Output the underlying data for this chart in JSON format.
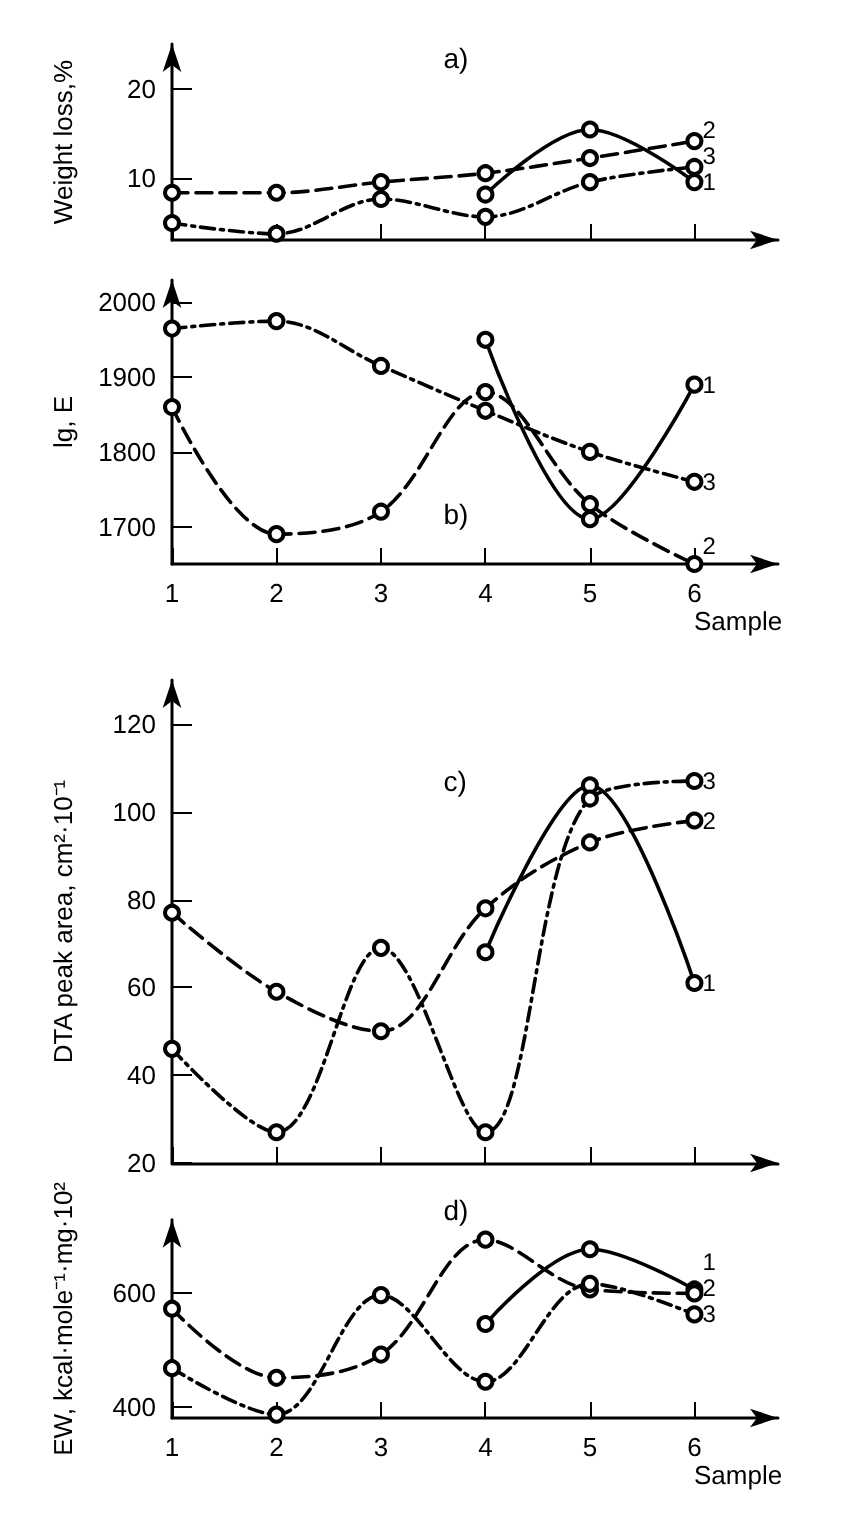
{
  "chart_data": [
    {
      "type": "line",
      "ylabel": "Weight loss,%",
      "annotations": [
        "a)"
      ],
      "x": [
        1,
        2,
        3,
        4,
        5,
        6
      ],
      "xlim": [
        1,
        6.8
      ],
      "xticks": [
        1,
        2,
        3,
        4,
        5,
        6
      ],
      "ylim": [
        3,
        25
      ],
      "yticks": [
        10,
        20
      ],
      "tick_labels": "y",
      "grid": false,
      "legend": false,
      "marker": "circle",
      "series": [
        {
          "name": "1",
          "color": "#000000",
          "line_style": "solid",
          "values": [
            null,
            null,
            null,
            8.1,
            15.4,
            9.5
          ]
        },
        {
          "name": "2",
          "color": "#000000",
          "line_style": "dashed",
          "values": [
            8.3,
            8.3,
            9.5,
            10.5,
            12.2,
            14.1
          ]
        },
        {
          "name": "3",
          "color": "#000000",
          "line_style": "dotted",
          "values": [
            4.9,
            3.7,
            7.6,
            5.6,
            9.5,
            11.2
          ]
        }
      ]
    },
    {
      "type": "line",
      "ylabel": "lg, E",
      "xlabel": "Sample",
      "annotations": [
        "b)"
      ],
      "x": [
        1,
        2,
        3,
        4,
        5,
        6
      ],
      "xlim": [
        1,
        6.8
      ],
      "xticks": [
        1,
        2,
        3,
        4,
        5,
        6
      ],
      "ylim": [
        1650,
        2030
      ],
      "yticks": [
        1700,
        1800,
        1900,
        2000
      ],
      "grid": false,
      "legend": false,
      "marker": "circle",
      "series": [
        {
          "name": "1",
          "color": "#000000",
          "line_style": "solid",
          "values": [
            null,
            null,
            null,
            1950,
            1710,
            1890
          ]
        },
        {
          "name": "2",
          "color": "#000000",
          "line_style": "dashed",
          "values": [
            1860,
            1690,
            1720,
            1880,
            1730,
            1650
          ]
        },
        {
          "name": "3",
          "color": "#000000",
          "line_style": "dotted",
          "values": [
            1965,
            1975,
            1915,
            1855,
            1800,
            1760
          ]
        }
      ]
    },
    {
      "type": "line",
      "ylabel": "DTA peak area, cm²·10⁻¹",
      "annotations": [
        "c)"
      ],
      "x": [
        1,
        2,
        3,
        4,
        5,
        6
      ],
      "xlim": [
        1,
        6.8
      ],
      "xticks": [
        1,
        2,
        3,
        4,
        5,
        6
      ],
      "ylim": [
        20,
        130
      ],
      "yticks": [
        20,
        40,
        60,
        80,
        100,
        120
      ],
      "tick_labels": "y",
      "grid": false,
      "legend": false,
      "marker": "circle",
      "series": [
        {
          "name": "1",
          "color": "#000000",
          "line_style": "solid",
          "values": [
            null,
            null,
            null,
            68,
            106,
            61
          ]
        },
        {
          "name": "2",
          "color": "#000000",
          "line_style": "dashed",
          "values": [
            77,
            59,
            50,
            78,
            93,
            98
          ]
        },
        {
          "name": "3",
          "color": "#000000",
          "line_style": "dotted",
          "values": [
            46,
            27,
            69,
            27,
            103,
            107
          ]
        }
      ]
    },
    {
      "type": "line",
      "ylabel": "EW, kcal·mole⁻¹·mg·10²",
      "xlabel": "Sample",
      "annotations": [
        "d)"
      ],
      "x": [
        1,
        2,
        3,
        4,
        5,
        6
      ],
      "xlim": [
        1,
        6.8
      ],
      "xticks": [
        1,
        2,
        3,
        4,
        5,
        6
      ],
      "ylim": [
        380,
        730
      ],
      "yticks": [
        400,
        600
      ],
      "grid": false,
      "legend": false,
      "marker": "circle",
      "series": [
        {
          "name": "1",
          "color": "#000000",
          "line_style": "solid",
          "values": [
            null,
            null,
            null,
            546,
            678,
            607
          ]
        },
        {
          "name": "2",
          "color": "#000000",
          "line_style": "dashed",
          "values": [
            573,
            451,
            492,
            695,
            607,
            600
          ]
        },
        {
          "name": "3",
          "color": "#000000",
          "line_style": "dotted",
          "values": [
            468,
            386,
            597,
            444,
            617,
            563
          ]
        }
      ]
    }
  ]
}
